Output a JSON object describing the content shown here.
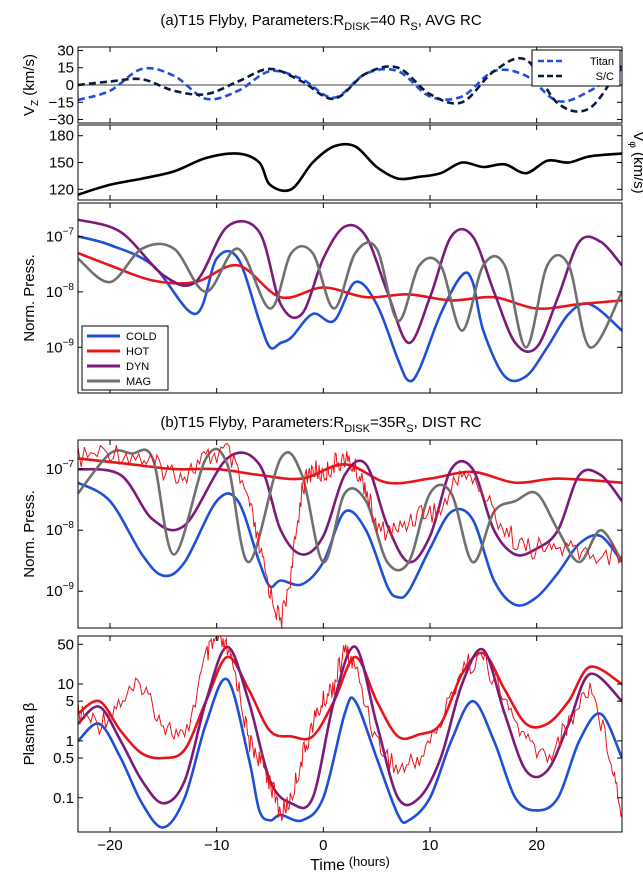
{
  "titles": {
    "a": {
      "pre": "(a)T15 Flyby, Parameters:R",
      "sub": "DISK",
      "mid": "=40 R",
      "sub2": "S",
      "post": ", AVG RC"
    },
    "b": {
      "pre": "(b)T15 Flyby, Parameters:R",
      "sub": "DISK",
      "mid": "=35R",
      "sub2": "S",
      "post": ", DIST RC"
    }
  },
  "xaxis": {
    "label": "Time",
    "unit": "(hours)",
    "range": [
      -23,
      28
    ],
    "ticks": [
      -20,
      -10,
      0,
      10,
      20
    ],
    "tick_labels": [
      "−20",
      "−10",
      "0",
      "10",
      "20"
    ]
  },
  "colors": {
    "cold": "#1f4fd8",
    "hot": "#e8141b",
    "dyn": "#7b1a78",
    "mag": "#6f6f6f",
    "titan": "#1f4fd8",
    "sc": "#0a1a3c"
  },
  "chart_data": [
    {
      "id": "vz",
      "type": "line",
      "ylabel": "V",
      "ylabel_sub": "Z",
      "ylabel_unit": " (km/s)",
      "ylim": [
        -33,
        33
      ],
      "yticks": [
        -30,
        -15,
        0,
        15,
        30
      ],
      "ytick_labels": [
        "−30",
        "−15",
        "0",
        "15",
        "30"
      ],
      "zero_line": true,
      "legend": "top-right",
      "series": [
        {
          "key": "titan",
          "name": "Titan",
          "style": "dashed",
          "x": [
            -23,
            -20,
            -17,
            -14,
            -11,
            -8,
            -5,
            -2,
            1,
            4,
            7,
            10,
            13,
            16,
            19,
            22,
            25,
            28
          ],
          "y": [
            -13,
            -5,
            14,
            8,
            -12,
            -5,
            12,
            5,
            -11,
            10,
            12,
            -10,
            -10,
            12,
            8,
            -14,
            -5,
            14
          ]
        },
        {
          "key": "sc",
          "name": "S/C",
          "style": "dashed",
          "x": [
            -23,
            -20,
            -17,
            -14,
            -11,
            -8,
            -5,
            -2,
            1,
            4,
            7,
            10,
            13,
            16,
            19,
            22,
            25,
            28
          ],
          "y": [
            0,
            3,
            5,
            -5,
            -8,
            3,
            14,
            3,
            -12,
            10,
            15,
            -8,
            -15,
            12,
            22,
            -16,
            -20,
            19
          ]
        }
      ]
    },
    {
      "id": "vphi",
      "type": "line",
      "ylabel": "V",
      "ylabel_sub": "φ",
      "ylabel_unit": " (km/s)",
      "ylabel_side": "right",
      "ylim": [
        108,
        192
      ],
      "yticks": [
        120,
        150,
        180
      ],
      "ytick_labels": [
        "120",
        "150",
        "180"
      ],
      "series": [
        {
          "key": "vphi",
          "x": [
            -23,
            -20,
            -17,
            -14,
            -11,
            -8,
            -6,
            -5,
            -3,
            -1,
            1,
            3,
            5,
            7,
            9,
            11,
            13,
            15,
            17,
            19,
            21,
            23,
            25,
            28
          ],
          "y": [
            114,
            125,
            132,
            140,
            155,
            160,
            150,
            125,
            120,
            150,
            168,
            168,
            145,
            132,
            134,
            138,
            150,
            145,
            148,
            138,
            152,
            150,
            157,
            160
          ]
        }
      ]
    },
    {
      "id": "press_a",
      "type": "line",
      "ylabel": "Norm. Press.",
      "yscale": "log",
      "ylim": [
        1.5e-10,
        4e-07
      ],
      "yticks": [
        1e-09,
        1e-08,
        1e-07
      ],
      "ytick_labels": [
        {
          "base": "10",
          "exp": "−9"
        },
        {
          "base": "10",
          "exp": "−8"
        },
        {
          "base": "10",
          "exp": "−7"
        }
      ],
      "legend": "bottom-left",
      "series": [
        {
          "key": "cold",
          "name": "COLD",
          "x": [
            -23,
            -20,
            -16,
            -12,
            -10,
            -8,
            -6,
            -5,
            -4,
            -3,
            -1,
            1,
            3,
            5,
            7,
            8,
            9,
            11,
            13,
            14,
            15,
            17,
            19,
            21,
            23,
            25,
            28
          ],
          "y": [
            1e-07,
            7e-08,
            3e-08,
            4e-09,
            4e-08,
            4e-08,
            3e-09,
            1e-09,
            1.2e-09,
            1.5e-09,
            4e-09,
            3e-09,
            1.5e-08,
            6e-09,
            6e-10,
            2.5e-10,
            4e-10,
            4e-09,
            2e-08,
            1.5e-08,
            2e-09,
            3e-10,
            3e-10,
            1e-09,
            4e-09,
            6e-09,
            2e-09
          ]
        },
        {
          "key": "hot",
          "name": "HOT",
          "x": [
            -23,
            -20,
            -16,
            -12,
            -8,
            -4,
            0,
            4,
            8,
            12,
            16,
            20,
            24,
            28
          ],
          "y": [
            5e-08,
            3e-08,
            1.6e-08,
            1.5e-08,
            3e-08,
            8e-09,
            1.2e-08,
            8e-09,
            9e-09,
            7e-09,
            8e-09,
            5e-09,
            6e-09,
            7e-09
          ]
        },
        {
          "key": "dyn",
          "name": "DYN",
          "x": [
            -23,
            -19,
            -15,
            -12,
            -9,
            -6,
            -4,
            -2,
            0,
            2,
            4,
            6,
            8,
            10,
            12,
            14,
            16,
            18,
            20,
            22,
            24,
            26,
            28
          ],
          "y": [
            2e-07,
            1.2e-07,
            2e-08,
            1.5e-08,
            1.5e-07,
            1.2e-07,
            6e-09,
            4e-09,
            4e-08,
            1.5e-07,
            1e-07,
            1e-08,
            1.2e-09,
            8e-09,
            1e-07,
            1e-07,
            1e-08,
            1.2e-09,
            1e-09,
            8e-09,
            8e-08,
            8e-08,
            3e-08
          ]
        },
        {
          "key": "mag",
          "name": "MAG",
          "x": [
            -23,
            -20,
            -17,
            -14,
            -11,
            -8,
            -5,
            -3,
            -1,
            1,
            3,
            5,
            7,
            9,
            11,
            13,
            15,
            17,
            19,
            21,
            23,
            25,
            28
          ],
          "y": [
            4e-08,
            1.5e-08,
            6e-08,
            6e-08,
            1e-08,
            6e-08,
            5e-09,
            5e-08,
            5e-08,
            5e-09,
            5e-08,
            6e-08,
            3e-09,
            3e-08,
            3e-08,
            2e-09,
            3e-08,
            3e-08,
            1e-09,
            3e-08,
            3e-08,
            1e-09,
            1e-08
          ]
        }
      ]
    },
    {
      "id": "press_b",
      "type": "line",
      "ylabel": "Norm. Press.",
      "yscale": "log",
      "ylim": [
        2.5e-10,
        3e-07
      ],
      "yticks": [
        1e-09,
        1e-08,
        1e-07
      ],
      "ytick_labels": [
        {
          "base": "10",
          "exp": "−9"
        },
        {
          "base": "10",
          "exp": "−8"
        },
        {
          "base": "10",
          "exp": "−7"
        }
      ],
      "series": [
        {
          "key": "cold",
          "x": [
            -23,
            -20,
            -17,
            -15,
            -13,
            -10,
            -8,
            -6,
            -5,
            -4,
            -2,
            0,
            2,
            4,
            6,
            7,
            8,
            10,
            12,
            14,
            16,
            18,
            20,
            22,
            24,
            26,
            28
          ],
          "y": [
            6e-08,
            3e-08,
            4e-09,
            1.8e-09,
            3e-09,
            3e-08,
            3e-08,
            3e-09,
            1.2e-09,
            1.5e-09,
            1.3e-09,
            3e-09,
            2e-08,
            1e-08,
            1.2e-09,
            8e-10,
            1e-09,
            5e-09,
            2e-08,
            1.5e-08,
            1.5e-09,
            6e-10,
            8e-10,
            2e-09,
            6e-09,
            8e-09,
            3e-09
          ]
        },
        {
          "key": "hot",
          "x": [
            -23,
            -18,
            -14,
            -10,
            -6,
            -2,
            2,
            6,
            10,
            14,
            18,
            22,
            28
          ],
          "y": [
            1.5e-07,
            1.2e-07,
            1e-07,
            1e-07,
            8e-08,
            7e-08,
            1.2e-07,
            6e-08,
            7e-08,
            9e-08,
            6e-08,
            7e-08,
            6e-08
          ]
        },
        {
          "key": "dyn",
          "x": [
            -23,
            -19,
            -16,
            -13,
            -9,
            -6,
            -4,
            -2,
            0,
            2,
            4,
            6,
            8,
            10,
            12,
            14,
            16,
            18,
            20,
            22,
            24,
            26,
            28
          ],
          "y": [
            1e-07,
            8e-08,
            1.5e-08,
            1.2e-08,
            1.5e-07,
            1.2e-07,
            1e-08,
            4e-09,
            8e-09,
            8e-08,
            1.2e-07,
            1.2e-08,
            3e-09,
            8e-09,
            1e-07,
            1e-07,
            1e-08,
            4e-09,
            5e-09,
            1e-08,
            8e-08,
            8e-08,
            3e-08
          ]
        },
        {
          "key": "mag",
          "x": [
            -23,
            -20,
            -18,
            -16,
            -14,
            -11,
            -9,
            -7,
            -4,
            -2,
            0,
            2,
            4,
            6,
            8,
            10,
            12,
            14,
            16,
            18,
            20,
            22,
            24,
            26,
            28
          ],
          "y": [
            4e-08,
            1.8e-07,
            1.8e-07,
            1.5e-07,
            4e-09,
            1.5e-07,
            1.2e-07,
            3e-09,
            1.5e-07,
            8e-08,
            3e-09,
            4e-08,
            3e-08,
            3e-09,
            3e-09,
            4e-08,
            4e-08,
            3e-09,
            2e-08,
            3e-08,
            4e-08,
            1e-08,
            3e-09,
            1e-08,
            3e-09
          ]
        },
        {
          "key": "hot_meas",
          "style": "noisy-thin",
          "x": [
            -23,
            -20,
            -17,
            -15,
            -13,
            -11,
            -9,
            -7,
            -6,
            -5,
            -4,
            -3,
            -2,
            -1,
            0,
            1,
            2,
            3,
            4,
            5,
            7,
            9,
            11,
            13,
            15,
            17,
            19,
            21,
            23,
            25,
            28
          ],
          "y": [
            1.5e-07,
            2e-07,
            1.5e-07,
            1e-07,
            8e-08,
            1.5e-07,
            2e-07,
            3e-08,
            5e-09,
            1e-09,
            3e-10,
            2e-09,
            5e-08,
            1e-07,
            8e-08,
            1.2e-07,
            1.5e-07,
            1e-07,
            5e-08,
            1e-08,
            1e-08,
            2e-08,
            2e-08,
            1e-07,
            4e-08,
            1e-08,
            5e-09,
            5e-09,
            5e-09,
            4e-09,
            4e-09
          ]
        }
      ]
    },
    {
      "id": "beta_b",
      "type": "line",
      "ylabel": "Plasma β",
      "yscale": "log",
      "ylim": [
        0.025,
        70
      ],
      "yticks": [
        0.1,
        0.5,
        1,
        5,
        10,
        50
      ],
      "ytick_labels": [
        "0.1",
        "0.5",
        "1",
        "5",
        "10",
        "50"
      ],
      "series": [
        {
          "key": "cold",
          "x": [
            -23,
            -21,
            -19,
            -17,
            -15,
            -13,
            -11,
            -9,
            -7,
            -6,
            -5,
            -4,
            -2,
            0,
            2,
            3,
            5,
            7,
            8,
            10,
            12,
            14,
            16,
            18,
            20,
            22,
            24,
            26,
            28
          ],
          "y": [
            1,
            2,
            0.5,
            0.08,
            0.03,
            0.1,
            2,
            12,
            0.5,
            0.06,
            0.04,
            0.05,
            0.04,
            0.1,
            3,
            5,
            0.5,
            0.05,
            0.04,
            0.1,
            1,
            5,
            1,
            0.1,
            0.06,
            0.1,
            1,
            3,
            0.5
          ]
        },
        {
          "key": "hot",
          "x": [
            -23,
            -21,
            -19,
            -17,
            -15,
            -13,
            -11,
            -9,
            -7,
            -5,
            -3,
            -1,
            1,
            3,
            5,
            7,
            9,
            11,
            13,
            15,
            17,
            19,
            21,
            23,
            25,
            28
          ],
          "y": [
            3,
            5,
            1.5,
            0.6,
            0.5,
            0.7,
            5,
            30,
            8,
            1.5,
            1.2,
            1.2,
            5,
            30,
            5,
            1.2,
            1.3,
            2,
            15,
            35,
            8,
            2,
            2,
            5,
            20,
            10
          ]
        },
        {
          "key": "dyn",
          "x": [
            -23,
            -21,
            -19,
            -17,
            -15,
            -13,
            -11,
            -9,
            -7,
            -5,
            -3,
            -1,
            1,
            3,
            5,
            7,
            9,
            11,
            13,
            15,
            17,
            19,
            21,
            23,
            25,
            28
          ],
          "y": [
            2,
            4,
            1,
            0.2,
            0.08,
            0.2,
            5,
            45,
            5,
            0.2,
            0.08,
            0.1,
            5,
            45,
            2,
            0.1,
            0.1,
            0.5,
            10,
            40,
            3,
            0.3,
            0.3,
            2,
            15,
            5
          ]
        },
        {
          "key": "hot_meas",
          "style": "noisy-thin",
          "x": [
            -23,
            -21,
            -19,
            -17,
            -15,
            -13,
            -11,
            -10,
            -9,
            -8,
            -7,
            -6,
            -5,
            -4,
            -3,
            -2,
            -1,
            0,
            1,
            2,
            3,
            5,
            7,
            9,
            11,
            13,
            15,
            17,
            19,
            21,
            23,
            25,
            27,
            28
          ],
          "y": [
            3,
            2,
            5,
            10,
            2,
            1,
            30,
            60,
            40,
            10,
            1,
            0.5,
            0.2,
            0.05,
            0.1,
            0.5,
            2,
            5,
            10,
            40,
            20,
            1,
            0.3,
            0.5,
            2,
            20,
            30,
            5,
            1,
            0.5,
            2,
            10,
            0.5,
            0.05
          ]
        }
      ]
    }
  ]
}
